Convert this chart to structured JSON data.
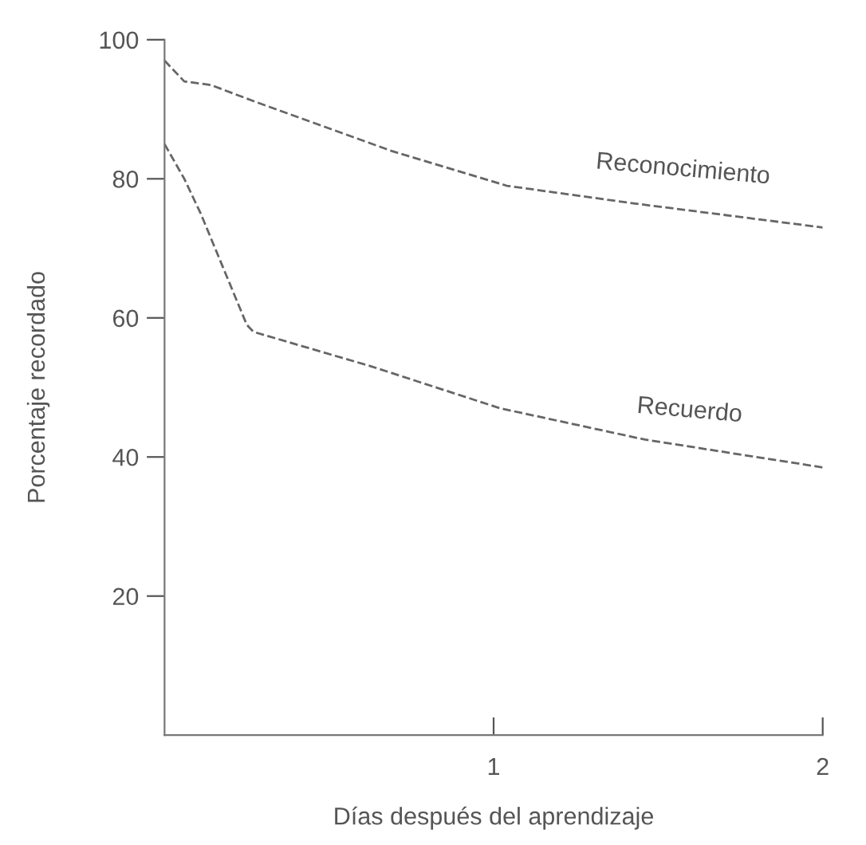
{
  "chart_data": {
    "type": "line",
    "xlabel": "Días después del aprendizaje",
    "ylabel": "Porcentaje recordado",
    "xlim": [
      0,
      2
    ],
    "xticks": [
      1,
      2
    ],
    "ylim": [
      0,
      100
    ],
    "yticks": [
      20,
      40,
      60,
      80,
      100
    ],
    "grid": false,
    "legend": false,
    "line_style": "dashed",
    "marker": "none",
    "series": [
      {
        "name": "Reconocimiento",
        "color": "#666666",
        "x": [
          0,
          0.06,
          0.14,
          0.28,
          0.69,
          1.04,
          1.42,
          2.0
        ],
        "values": [
          97,
          94,
          93.5,
          91,
          84,
          79,
          76.5,
          73
        ]
      },
      {
        "name": "Recuerdo",
        "color": "#666666",
        "x": [
          0,
          0.06,
          0.11,
          0.25,
          0.27,
          0.63,
          1.02,
          1.46,
          2.0
        ],
        "values": [
          85,
          80,
          75,
          59,
          58,
          53,
          47,
          42.5,
          38.5
        ]
      }
    ]
  }
}
